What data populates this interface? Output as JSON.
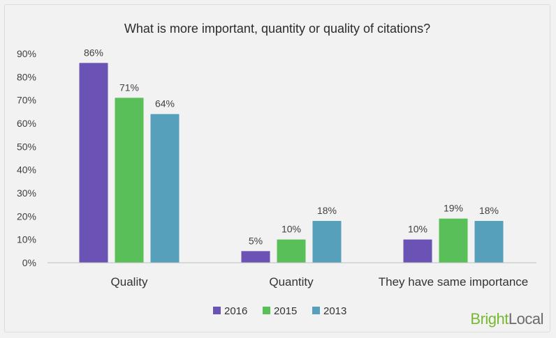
{
  "chart_data": {
    "type": "bar",
    "title": "What is more important, quantity or quality of citations?",
    "categories": [
      "Quality",
      "Quantity",
      "They have same importance"
    ],
    "series": [
      {
        "name": "2016",
        "color": "#6b52b5",
        "values": [
          86,
          5,
          10
        ],
        "labels": [
          "86%",
          "5%",
          "10%"
        ]
      },
      {
        "name": "2015",
        "color": "#58bf59",
        "values": [
          71,
          10,
          19
        ],
        "labels": [
          "71%",
          "10%",
          "19%"
        ]
      },
      {
        "name": "2013",
        "color": "#57a0bb",
        "values": [
          64,
          18,
          18
        ],
        "labels": [
          "64%",
          "18%",
          "18%"
        ]
      }
    ],
    "y_ticks": [
      "0%",
      "10%",
      "20%",
      "30%",
      "40%",
      "50%",
      "60%",
      "70%",
      "80%",
      "90%"
    ],
    "ylim": [
      0,
      90
    ],
    "grid": false,
    "legend_position": "bottom"
  },
  "brand": {
    "part1": "Bright",
    "part2": "Local"
  }
}
